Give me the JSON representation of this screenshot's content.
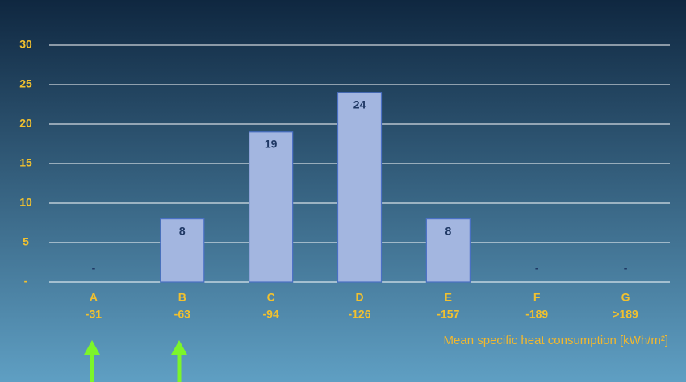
{
  "chart_data": {
    "type": "bar",
    "categories": [
      "A",
      "B",
      "C",
      "D",
      "E",
      "F",
      "G"
    ],
    "category_ranges": [
      "-31",
      "-63",
      "-94",
      "-126",
      "-157",
      "-189",
      ">189"
    ],
    "values": [
      0,
      8,
      19,
      24,
      8,
      0,
      0
    ],
    "value_labels": [
      "-",
      "8",
      "19",
      "24",
      "8",
      "-",
      "-"
    ],
    "color": "#a3b6e0",
    "x_label": "Mean specific heat consumption [kWh/m²]",
    "ylim": [
      0,
      30
    ],
    "yticks": [
      {
        "value": 0,
        "label": "-"
      },
      5,
      10,
      15,
      20,
      25,
      30
    ],
    "grid": true
  }
}
